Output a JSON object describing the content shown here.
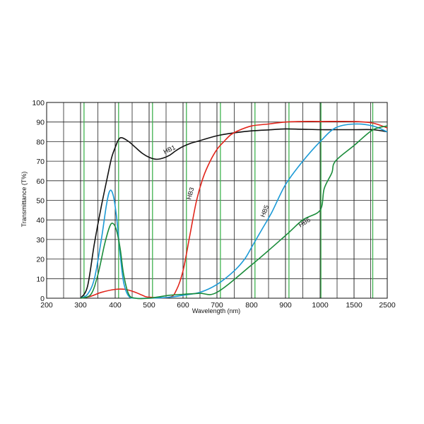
{
  "chart_data": {
    "type": "line",
    "xlabel": "Wavelength (nm)",
    "ylabel": "Transmittance (T%)",
    "x_ticks": [
      "200",
      "300",
      "400",
      "500",
      "600",
      "700",
      "800",
      "900",
      "1000",
      "1500",
      "2500"
    ],
    "y_ticks": [
      "0",
      "10",
      "20",
      "30",
      "40",
      "50",
      "60",
      "70",
      "80",
      "90",
      "100"
    ],
    "ylim": [
      0,
      100
    ],
    "grid": true,
    "green_gridlines_x": [
      310,
      410,
      510,
      610,
      710,
      810,
      910,
      1010,
      2000
    ],
    "series": [
      {
        "name": "HB1",
        "color": "#111111",
        "x": [
          300,
          320,
          340,
          360,
          380,
          390,
          400,
          410,
          420,
          440,
          460,
          480,
          500,
          520,
          540,
          560,
          580,
          600,
          620,
          650,
          700,
          750,
          800,
          850,
          900,
          950,
          1000,
          1200,
          1500,
          2000,
          2500
        ],
        "y": [
          0,
          6,
          28,
          47,
          64,
          72,
          77,
          81,
          82,
          80,
          77,
          74,
          72,
          71,
          71.5,
          73,
          75.5,
          77.5,
          79,
          80.5,
          83,
          84.5,
          85.5,
          86,
          86.5,
          86.3,
          86.1,
          86.1,
          86.1,
          86.1,
          85
        ]
      },
      {
        "name": "HB3",
        "color": "#e1251b",
        "x": [
          300,
          330,
          360,
          400,
          430,
          460,
          480,
          500,
          560,
          580,
          600,
          620,
          640,
          660,
          680,
          700,
          720,
          740,
          760,
          800,
          850,
          900,
          950,
          1000,
          1500,
          2000,
          2500
        ],
        "y": [
          0,
          1,
          3,
          4.5,
          4.5,
          3,
          1.5,
          0.5,
          0.5,
          4,
          14,
          32,
          50,
          62,
          70,
          76,
          80,
          83.5,
          85.5,
          88,
          89,
          90,
          90.3,
          90.3,
          90.3,
          89.5,
          87
        ]
      },
      {
        "name": "HB5",
        "color": "#1b9ad6",
        "x": [
          300,
          320,
          340,
          360,
          375,
          385,
          395,
          405,
          415,
          425,
          440,
          460,
          500,
          560,
          600,
          650,
          700,
          750,
          780,
          800,
          830,
          860,
          900,
          950,
          1000,
          1200,
          1500,
          2000,
          2500
        ],
        "y": [
          0,
          2,
          10,
          30,
          48,
          55,
          52,
          40,
          22,
          8,
          1,
          0,
          0,
          0.5,
          1.5,
          3,
          7,
          14,
          20,
          26,
          35,
          44,
          58,
          70,
          80,
          87,
          89,
          88,
          85
        ]
      },
      {
        "name": "HB6",
        "color": "#1a8c3a",
        "x": [
          300,
          330,
          350,
          370,
          385,
          395,
          405,
          415,
          425,
          440,
          460,
          500,
          560,
          600,
          650,
          700,
          800,
          900,
          950,
          1000,
          1050,
          1150,
          1200,
          1500,
          2000,
          2500
        ],
        "y": [
          0,
          2,
          12,
          28,
          37,
          38,
          34,
          25,
          12,
          2,
          0,
          0,
          1.5,
          2,
          2.5,
          3,
          17,
          32,
          40,
          45,
          56,
          64,
          70,
          78,
          86,
          88
        ]
      }
    ],
    "curve_labels": [
      {
        "series": "HB1",
        "text": "HB1"
      },
      {
        "series": "HB3",
        "text": "HB3"
      },
      {
        "series": "HB5",
        "text": "HB5"
      },
      {
        "series": "HB6",
        "text": "HB6"
      }
    ]
  }
}
